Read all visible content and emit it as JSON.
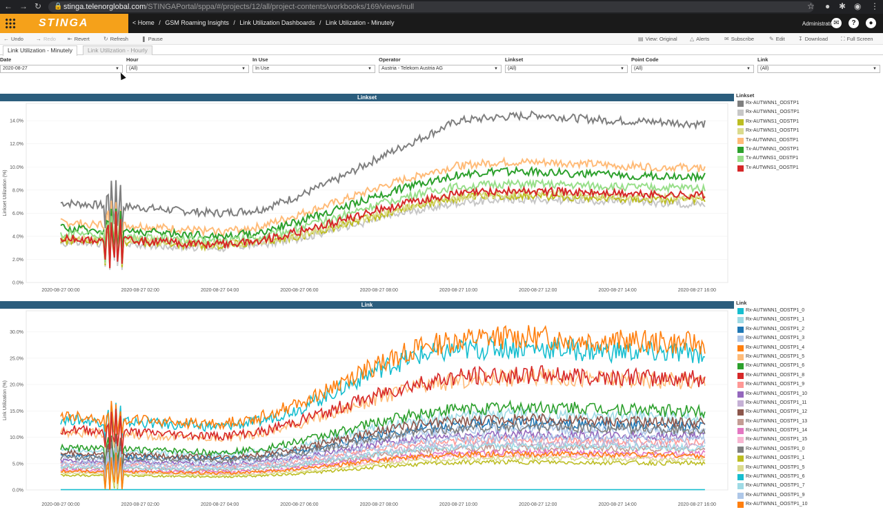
{
  "browser": {
    "url_host": "stinga.telenorglobal.com",
    "url_path": "/STINGAPortal/sppa/#/projects/12/all/project-contents/workbooks/169/views/null"
  },
  "app": {
    "logo": "STINGA",
    "breadcrumbs": [
      "< Home",
      "/",
      "GSM Roaming Insights",
      "/",
      "Link Utilization Dashboards",
      "/",
      "Link Utilization - Minutely"
    ],
    "user": "Administrator"
  },
  "toolbar": {
    "undo": "Undo",
    "redo": "Redo",
    "revert": "Revert",
    "refresh": "Refresh",
    "pause": "Pause",
    "view": "View: Original",
    "alerts": "Alerts",
    "subscribe": "Subscribe",
    "edit": "Edit",
    "download": "Download",
    "fullscreen": "Full Screen"
  },
  "tabs": [
    "Link Utilization - Minutely",
    "Link Utilization - Hourly"
  ],
  "filters": [
    {
      "label": "Date",
      "value": "2020-08-27"
    },
    {
      "label": "Hour",
      "value": "(All)"
    },
    {
      "label": "In Use",
      "value": "In Use"
    },
    {
      "label": "Operator",
      "value": "Austria - Telekom Austria AG"
    },
    {
      "label": "Linkset",
      "value": "(All)"
    },
    {
      "label": "Point Code",
      "value": "(All)"
    },
    {
      "label": "Link",
      "value": "(All)"
    }
  ],
  "chart_data": [
    {
      "type": "line",
      "title": "Linkset",
      "ylabel": "Linkset Utilization (%)",
      "xlabel": "",
      "x_ticks": [
        "2020-08-27 00:00",
        "2020-08-27 02:00",
        "2020-08-27 04:00",
        "2020-08-27 06:00",
        "2020-08-27 08:00",
        "2020-08-27 10:00",
        "2020-08-27 12:00",
        "2020-08-27 14:00",
        "2020-08-27 16:00"
      ],
      "x_hours": [
        0,
        1,
        2,
        3,
        4,
        5,
        6,
        7,
        8,
        9,
        10,
        11,
        12,
        13,
        14,
        15,
        16.2
      ],
      "ylim": [
        0,
        15.5
      ],
      "y_ticks": [
        "0.0%",
        "2.0%",
        "4.0%",
        "6.0%",
        "8.0%",
        "10.0%",
        "12.0%",
        "14.0%"
      ],
      "legend_title": "Linkset",
      "legend_position": "right",
      "series": [
        {
          "name": "Rx-AUTWNN1_ODSTP1",
          "color": "#7f7f7f",
          "values": [
            6.9,
            6.7,
            6.5,
            6.2,
            6.0,
            6.3,
            7.5,
            9.0,
            10.8,
            12.4,
            14.0,
            14.3,
            14.5,
            14.2,
            14.0,
            13.9,
            13.7
          ]
        },
        {
          "name": "Rx-AUTWNN1_OOSTP1",
          "color": "#c7c7c7",
          "values": [
            3.4,
            3.4,
            3.3,
            3.1,
            3.0,
            3.3,
            3.8,
            4.7,
            5.5,
            6.3,
            6.9,
            7.2,
            7.2,
            7.1,
            7.0,
            6.9,
            6.8
          ]
        },
        {
          "name": "Rx-AUTWNS1_ODSTP1",
          "color": "#bcbd22",
          "values": [
            3.6,
            3.6,
            3.5,
            3.3,
            3.2,
            3.5,
            4.0,
            4.9,
            5.8,
            6.7,
            7.3,
            7.5,
            7.5,
            7.4,
            7.3,
            7.2,
            7.1
          ]
        },
        {
          "name": "Rx-AUTWNS1_OOSTP1",
          "color": "#dbdb8d",
          "values": [
            3.8,
            3.8,
            3.7,
            3.5,
            3.3,
            3.6,
            4.1,
            5.0,
            5.9,
            6.8,
            7.4,
            7.6,
            7.7,
            7.6,
            7.5,
            7.4,
            7.3
          ]
        },
        {
          "name": "Tx-AUTWNN1_ODSTP1",
          "color": "#ffbb78",
          "values": [
            5.2,
            5.0,
            4.9,
            4.6,
            4.4,
            4.8,
            5.9,
            7.0,
            8.2,
            9.3,
            10.1,
            10.4,
            10.4,
            10.3,
            10.1,
            10.0,
            9.9
          ]
        },
        {
          "name": "Tx-AUTWNN1_OOSTP1",
          "color": "#2ca02c",
          "values": [
            4.7,
            4.5,
            4.4,
            4.2,
            4.0,
            4.3,
            5.3,
            6.4,
            7.5,
            8.6,
            9.3,
            9.6,
            9.6,
            9.4,
            9.3,
            9.2,
            9.2
          ]
        },
        {
          "name": "Tx-AUTWNS1_ODSTP1",
          "color": "#98df8a",
          "values": [
            4.2,
            4.1,
            3.9,
            3.7,
            3.6,
            3.9,
            4.7,
            5.7,
            6.8,
            7.7,
            8.3,
            8.5,
            8.5,
            8.4,
            8.3,
            8.2,
            8.2
          ]
        },
        {
          "name": "Tx-AUTWNS1_OOSTP1",
          "color": "#d62728",
          "values": [
            3.8,
            3.7,
            3.6,
            3.4,
            3.3,
            3.6,
            4.4,
            5.3,
            6.3,
            7.1,
            7.7,
            7.9,
            7.9,
            7.8,
            7.7,
            7.6,
            7.6
          ]
        }
      ]
    },
    {
      "type": "line",
      "title": "Link",
      "ylabel": "Link Utilization (%)",
      "xlabel": "",
      "x_ticks": [
        "2020-08-27 00:00",
        "2020-08-27 02:00",
        "2020-08-27 04:00",
        "2020-08-27 06:00",
        "2020-08-27 08:00",
        "2020-08-27 10:00",
        "2020-08-27 12:00",
        "2020-08-27 14:00",
        "2020-08-27 16:00"
      ],
      "x_hours": [
        0,
        1,
        2,
        3,
        4,
        5,
        6,
        7,
        8,
        9,
        10,
        11,
        12,
        13,
        14,
        15,
        16.2
      ],
      "ylim": [
        0,
        34
      ],
      "y_ticks": [
        "0.0%",
        "5.0%",
        "10.0%",
        "15.0%",
        "20.0%",
        "25.0%",
        "30.0%"
      ],
      "legend_title": "Link",
      "legend_position": "right",
      "series": [
        {
          "name": "Rx-AUTWNN1_ODSTP1_0",
          "color": "#17becf",
          "values": [
            13.5,
            13.0,
            12.8,
            12.3,
            12.0,
            13.0,
            15.5,
            19.0,
            23.0,
            25.5,
            26.5,
            27.0,
            27.0,
            26.5,
            26.3,
            26.0,
            26.0
          ]
        },
        {
          "name": "Rx-AUTWNN1_ODSTP1_1",
          "color": "#9edae5",
          "values": [
            7.5,
            7.3,
            7.1,
            6.9,
            6.8,
            7.2,
            8.3,
            10.0,
            11.8,
            13.3,
            14.0,
            14.3,
            14.3,
            14.1,
            14.0,
            13.8,
            13.7
          ]
        },
        {
          "name": "Rx-AUTWNN1_ODSTP1_2",
          "color": "#1f77b4",
          "values": [
            6.5,
            6.3,
            6.2,
            6.0,
            5.9,
            6.3,
            7.3,
            8.8,
            10.4,
            11.6,
            12.3,
            12.6,
            12.6,
            12.4,
            12.3,
            12.1,
            12.0
          ]
        },
        {
          "name": "Rx-AUTWNN1_ODSTP1_3",
          "color": "#aec7e8",
          "values": [
            6.0,
            5.8,
            5.7,
            5.5,
            5.4,
            5.8,
            6.7,
            8.1,
            9.6,
            10.7,
            11.3,
            11.6,
            11.6,
            11.4,
            11.3,
            11.1,
            11.0
          ]
        },
        {
          "name": "Rx-AUTWNN1_ODSTP1_4",
          "color": "#ff7f0e",
          "values": [
            14.0,
            13.5,
            13.2,
            12.8,
            12.5,
            13.8,
            16.5,
            20.0,
            24.0,
            27.0,
            28.5,
            29.0,
            29.0,
            28.5,
            28.3,
            28.0,
            27.8
          ]
        },
        {
          "name": "Rx-AUTWNN1_ODSTP1_5",
          "color": "#ffbb78",
          "values": [
            11.0,
            10.7,
            10.4,
            10.1,
            9.8,
            10.6,
            12.6,
            15.0,
            17.6,
            19.6,
            20.8,
            21.3,
            21.4,
            21.2,
            21.0,
            20.8,
            20.6
          ]
        },
        {
          "name": "Rx-AUTWNN1_ODSTP1_6",
          "color": "#2ca02c",
          "values": [
            8.0,
            7.8,
            7.6,
            7.3,
            7.1,
            7.7,
            9.2,
            11.0,
            12.9,
            14.4,
            15.3,
            15.7,
            15.7,
            15.5,
            15.3,
            15.1,
            15.0
          ]
        },
        {
          "name": "Rx-AUTWNN1_ODSTP1_8",
          "color": "#d62728",
          "values": [
            11.5,
            11.2,
            10.9,
            10.5,
            10.2,
            11.0,
            13.1,
            15.6,
            18.2,
            20.2,
            21.4,
            21.8,
            21.9,
            21.7,
            21.5,
            21.3,
            21.1
          ]
        },
        {
          "name": "Rx-AUTWNN1_ODSTP1_9",
          "color": "#ff9896",
          "values": [
            5.0,
            4.9,
            4.8,
            4.6,
            4.5,
            4.8,
            5.6,
            6.7,
            7.9,
            8.8,
            9.3,
            9.5,
            9.5,
            9.4,
            9.3,
            9.2,
            9.1
          ]
        },
        {
          "name": "Rx-AUTWNN1_ODSTP1_10",
          "color": "#9467bd",
          "values": [
            5.5,
            5.4,
            5.2,
            5.0,
            4.9,
            5.3,
            6.2,
            7.4,
            8.7,
            9.7,
            10.3,
            10.5,
            10.5,
            10.4,
            10.3,
            10.2,
            10.1
          ]
        },
        {
          "name": "Rx-AUTWNN1_ODSTP1_11",
          "color": "#c5b0d5",
          "values": [
            4.6,
            4.5,
            4.4,
            4.2,
            4.1,
            4.4,
            5.1,
            6.1,
            7.2,
            8.0,
            8.5,
            8.7,
            8.7,
            8.6,
            8.5,
            8.4,
            8.3
          ]
        },
        {
          "name": "Rx-AUTWNN1_ODSTP1_12",
          "color": "#8c564b",
          "values": [
            7.0,
            6.8,
            6.6,
            6.4,
            6.2,
            6.7,
            7.9,
            9.5,
            11.1,
            12.4,
            13.1,
            13.4,
            13.4,
            13.2,
            13.1,
            12.9,
            12.8
          ]
        },
        {
          "name": "Rx-AUTWNN1_ODSTP1_13",
          "color": "#c49c94",
          "values": [
            4.2,
            4.1,
            4.0,
            3.8,
            3.7,
            4.0,
            4.7,
            5.6,
            6.6,
            7.3,
            7.8,
            8.0,
            8.0,
            7.9,
            7.8,
            7.7,
            7.6
          ]
        },
        {
          "name": "Rx-AUTWNN1_ODSTP1_14",
          "color": "#e377c2",
          "values": [
            3.8,
            3.7,
            3.6,
            3.5,
            3.4,
            3.6,
            4.2,
            5.1,
            5.9,
            6.6,
            7.0,
            7.2,
            7.2,
            7.1,
            7.0,
            6.9,
            6.9
          ]
        },
        {
          "name": "Rx-AUTWNN1_ODSTP1_15",
          "color": "#f7b6d2",
          "values": [
            3.5,
            3.4,
            3.3,
            3.2,
            3.1,
            3.3,
            3.9,
            4.7,
            5.5,
            6.1,
            6.5,
            6.6,
            6.6,
            6.5,
            6.5,
            6.4,
            6.3
          ]
        },
        {
          "name": "Rx-AUTWNN1_OOSTP1_0",
          "color": "#7f7f7f",
          "values": [
            6.2,
            6.0,
            5.9,
            5.7,
            5.5,
            6.0,
            7.0,
            8.4,
            9.9,
            11.0,
            11.7,
            12.0,
            12.0,
            11.8,
            11.7,
            11.5,
            11.4
          ]
        },
        {
          "name": "Rx-AUTWNN1_OOSTP1_1",
          "color": "#bcbd22",
          "values": [
            2.8,
            2.7,
            2.7,
            2.6,
            2.5,
            2.7,
            3.1,
            3.7,
            4.4,
            4.9,
            5.2,
            5.3,
            5.3,
            5.2,
            5.2,
            5.1,
            5.1
          ]
        },
        {
          "name": "Rx-AUTWNN1_OOSTP1_5",
          "color": "#dbdb8d",
          "values": [
            3.2,
            3.1,
            3.0,
            2.9,
            2.8,
            3.0,
            3.5,
            4.2,
            5.0,
            5.6,
            5.9,
            6.0,
            6.0,
            6.0,
            5.9,
            5.8,
            5.8
          ]
        },
        {
          "name": "Rx-AUTWNN1_OOSTP1_6",
          "color": "#17becf",
          "values": [
            0.05,
            0.05,
            0.05,
            0.05,
            0.05,
            0.05,
            0.05,
            0.05,
            0.05,
            0.05,
            0.05,
            0.05,
            0.05,
            0.05,
            0.05,
            0.05,
            0.05
          ]
        },
        {
          "name": "Rx-AUTWNN1_OOSTP1_7",
          "color": "#9edae5",
          "values": [
            4.4,
            4.3,
            4.2,
            4.0,
            3.9,
            4.2,
            4.9,
            5.9,
            6.9,
            7.7,
            8.2,
            8.4,
            8.4,
            8.3,
            8.2,
            8.1,
            8.0
          ]
        },
        {
          "name": "Rx-AUTWNN1_OOSTP1_9",
          "color": "#aec7e8",
          "values": [
            5.2,
            5.1,
            4.9,
            4.7,
            4.6,
            5.0,
            5.9,
            7.0,
            8.2,
            9.2,
            9.7,
            9.9,
            9.9,
            9.8,
            9.7,
            9.6,
            9.5
          ]
        },
        {
          "name": "Rx-AUTWNN1_OOSTP1_10",
          "color": "#ff7f0e",
          "values": [
            3.6,
            3.5,
            3.4,
            3.3,
            3.2,
            3.4,
            4.0,
            4.8,
            5.6,
            6.3,
            6.7,
            6.8,
            6.8,
            6.7,
            6.7,
            6.6,
            6.5
          ]
        }
      ]
    }
  ]
}
